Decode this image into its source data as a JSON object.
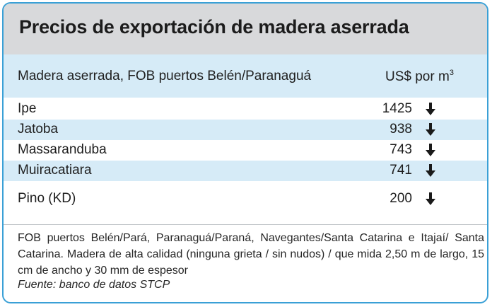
{
  "title": "Precios de exportación de madera aserrada",
  "header": {
    "label": "Madera aserrada, FOB puertos Belén/Paranaguá",
    "unit": "US$ por m",
    "unit_superscript": "3"
  },
  "rows": [
    {
      "name": "Ipe",
      "value": "1425",
      "trend": "down"
    },
    {
      "name": "Jatoba",
      "value": "938",
      "trend": "down"
    },
    {
      "name": "Massaranduba",
      "value": "743",
      "trend": "down"
    },
    {
      "name": "Muiracatiara",
      "value": "741",
      "trend": "down"
    },
    {
      "name": "Pino (KD)",
      "value": "200",
      "trend": "down"
    }
  ],
  "note": "FOB puertos Belén/Pará, Paranaguá/Paraná, Navegantes/Santa Catarina e Itajaí/ Santa Catarina. Madera de alta calidad (ninguna grieta / sin nudos) / que mida 2,50 m de largo, 15 cm de ancho y 30 mm de espesor",
  "source": "Fuente: banco de datos STCP",
  "colors": {
    "border": "#3aa0d6",
    "title_band": "#d8d9db",
    "row_shade": "#d6ebf7",
    "arrow": "#1a1a1a"
  },
  "icons": {
    "trend_down": "arrow-down-icon"
  }
}
